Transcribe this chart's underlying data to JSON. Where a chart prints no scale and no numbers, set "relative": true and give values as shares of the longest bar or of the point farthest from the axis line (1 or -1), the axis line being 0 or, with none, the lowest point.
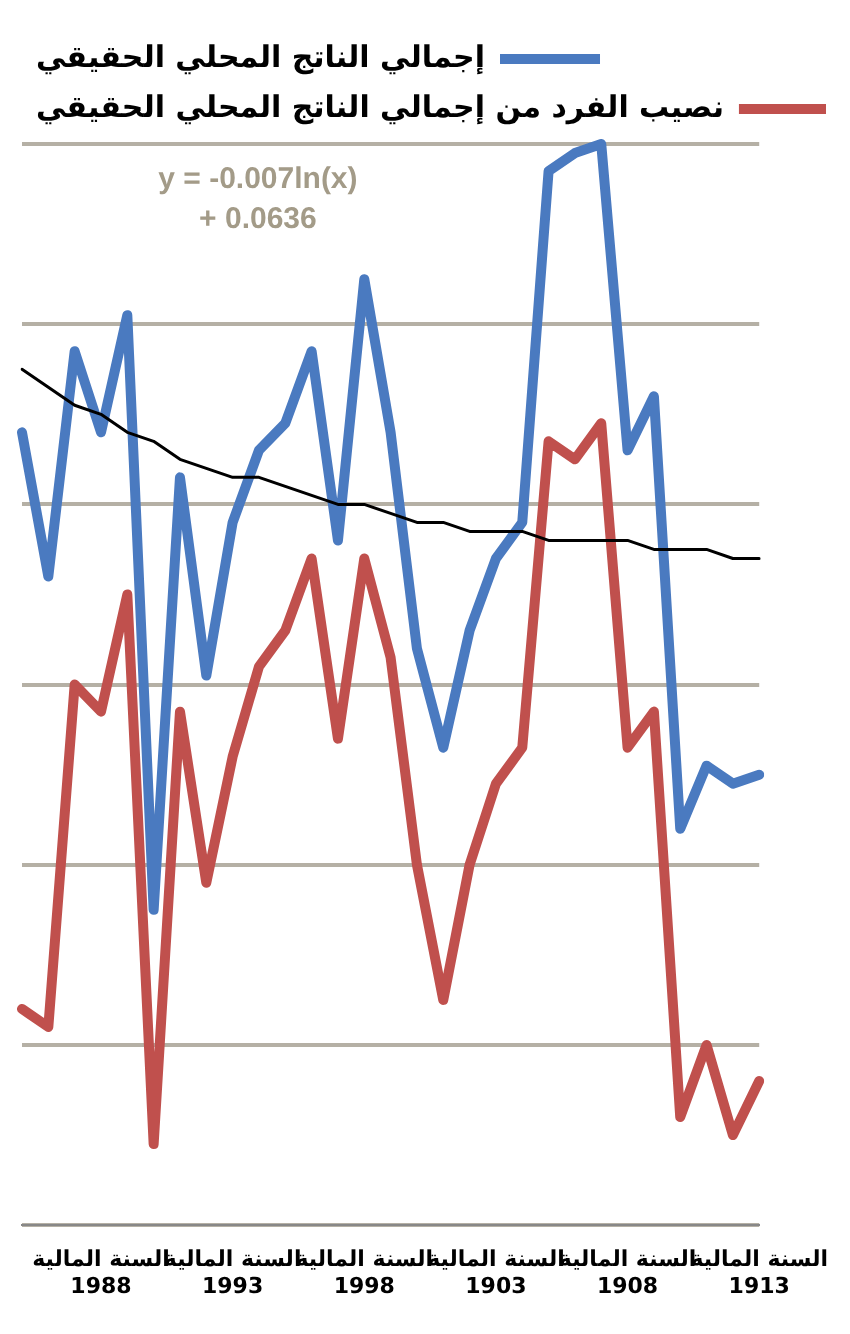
{
  "chart_data": {
    "type": "line",
    "relative": true,
    "legend": "top right",
    "grid": "y",
    "marker": "none",
    "line_style": "solid",
    "categories": [
      null,
      null,
      null,
      "السنة المالية 1988",
      null,
      null,
      null,
      null,
      "السنة المالية 1993",
      null,
      null,
      null,
      null,
      "السنة المالية 1998",
      null,
      null,
      null,
      null,
      "السنة المالية 1903",
      null,
      null,
      null,
      null,
      "السنة المالية 1908",
      null,
      null,
      null,
      null,
      "السنة المالية 1913"
    ],
    "series": [
      {
        "name": "إجمالي الناتج المحلي الحقيقي",
        "color": "#4a7ac0",
        "values": [
          0.68,
          0.52,
          0.77,
          0.68,
          0.81,
          0.15,
          0.63,
          0.41,
          0.58,
          0.66,
          0.69,
          0.77,
          0.56,
          0.85,
          0.68,
          0.44,
          0.33,
          0.46,
          0.54,
          0.58,
          0.97,
          0.99,
          1,
          0.66,
          0.72,
          0.24,
          0.31,
          0.29,
          0.3
        ]
      },
      {
        "name": "نصيب الفرد من إجمالي الناتج المحلي الحقيقي",
        "color": "#c0504d",
        "values": [
          0.04,
          0.02,
          0.4,
          0.37,
          0.5,
          -0.11,
          0.37,
          0.18,
          0.32,
          0.42,
          0.46,
          0.54,
          0.34,
          0.54,
          0.43,
          0.2,
          0.05,
          0.2,
          0.29,
          0.33,
          0.67,
          0.65,
          0.69,
          0.33,
          0.37,
          -0.08,
          0.0,
          -0.1,
          -0.04
        ]
      },
      {
        "type": "line",
        "color": "#000000",
        "values": [
          0.75,
          0.73,
          0.71,
          0.7,
          0.68,
          0.67,
          0.65,
          0.64,
          0.63,
          0.63,
          0.62,
          0.61,
          0.6,
          0.6,
          0.59,
          0.58,
          0.58,
          0.57,
          0.57,
          0.57,
          0.56,
          0.56,
          0.56,
          0.56,
          0.55,
          0.55,
          0.55,
          0.54,
          0.54
        ]
      }
    ],
    "annotations": [
      "y = -0.007ln(x)\n+ 0.0636"
    ]
  }
}
